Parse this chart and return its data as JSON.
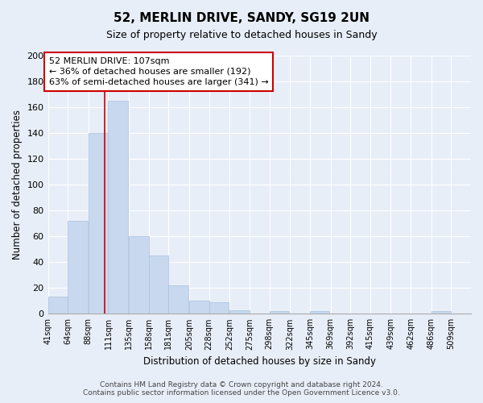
{
  "title": "52, MERLIN DRIVE, SANDY, SG19 2UN",
  "subtitle": "Size of property relative to detached houses in Sandy",
  "xlabel": "Distribution of detached houses by size in Sandy",
  "ylabel": "Number of detached properties",
  "bar_color": "#c8d8ee",
  "bar_edge_color": "#a8c0de",
  "marker_color": "#cc0000",
  "marker_value": 107,
  "categories": [
    "41sqm",
    "64sqm",
    "88sqm",
    "111sqm",
    "135sqm",
    "158sqm",
    "181sqm",
    "205sqm",
    "228sqm",
    "252sqm",
    "275sqm",
    "298sqm",
    "322sqm",
    "345sqm",
    "369sqm",
    "392sqm",
    "415sqm",
    "439sqm",
    "462sqm",
    "486sqm",
    "509sqm"
  ],
  "bin_edges": [
    41,
    64,
    88,
    111,
    135,
    158,
    181,
    205,
    228,
    252,
    275,
    298,
    322,
    345,
    369,
    392,
    415,
    439,
    462,
    486,
    509
  ],
  "bin_width": 23,
  "values": [
    13,
    72,
    140,
    165,
    60,
    45,
    22,
    10,
    9,
    3,
    0,
    2,
    0,
    2,
    0,
    0,
    0,
    0,
    0,
    2,
    0
  ],
  "ylim": [
    0,
    200
  ],
  "yticks": [
    0,
    20,
    40,
    60,
    80,
    100,
    120,
    140,
    160,
    180,
    200
  ],
  "annotation_title": "52 MERLIN DRIVE: 107sqm",
  "annotation_line1": "← 36% of detached houses are smaller (192)",
  "annotation_line2": "63% of semi-detached houses are larger (341) →",
  "annotation_box_color": "#ffffff",
  "annotation_box_edge": "#cc0000",
  "footer_line1": "Contains HM Land Registry data © Crown copyright and database right 2024.",
  "footer_line2": "Contains public sector information licensed under the Open Government Licence v3.0.",
  "background_color": "#e8eef8",
  "plot_bg_color": "#e8eef8",
  "grid_color": "#ffffff"
}
